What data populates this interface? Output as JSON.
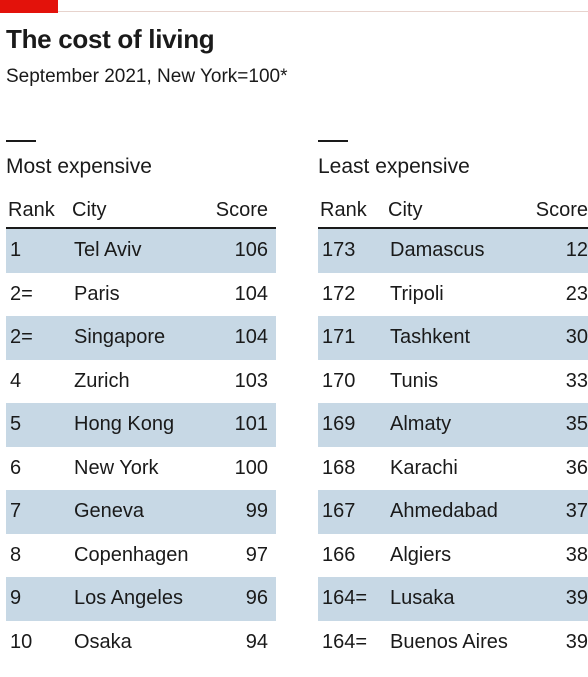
{
  "brand": {
    "accent_color": "#e3120b",
    "row_shade_color": "#c7d8e5"
  },
  "title": "The cost of living",
  "subtitle": "September 2021, New York=100*",
  "chart_data": [
    {
      "type": "table",
      "heading": "Most expensive",
      "columns": [
        "Rank",
        "City",
        "Score"
      ],
      "rows": [
        {
          "rank": "1",
          "city": "Tel Aviv",
          "score": 106
        },
        {
          "rank": "2=",
          "city": "Paris",
          "score": 104
        },
        {
          "rank": "2=",
          "city": "Singapore",
          "score": 104
        },
        {
          "rank": "4",
          "city": "Zurich",
          "score": 103
        },
        {
          "rank": "5",
          "city": "Hong Kong",
          "score": 101
        },
        {
          "rank": "6",
          "city": "New York",
          "score": 100
        },
        {
          "rank": "7",
          "city": "Geneva",
          "score": 99
        },
        {
          "rank": "8",
          "city": "Copenhagen",
          "score": 97
        },
        {
          "rank": "9",
          "city": "Los Angeles",
          "score": 96
        },
        {
          "rank": "10",
          "city": "Osaka",
          "score": 94
        }
      ]
    },
    {
      "type": "table",
      "heading": "Least expensive",
      "columns": [
        "Rank",
        "City",
        "Score"
      ],
      "rows": [
        {
          "rank": "173",
          "city": "Damascus",
          "score": 12
        },
        {
          "rank": "172",
          "city": "Tripoli",
          "score": 23
        },
        {
          "rank": "171",
          "city": "Tashkent",
          "score": 30
        },
        {
          "rank": "170",
          "city": "Tunis",
          "score": 33
        },
        {
          "rank": "169",
          "city": "Almaty",
          "score": 35
        },
        {
          "rank": "168",
          "city": "Karachi",
          "score": 36
        },
        {
          "rank": "167",
          "city": "Ahmedabad",
          "score": 37
        },
        {
          "rank": "166",
          "city": "Algiers",
          "score": 38
        },
        {
          "rank": "164=",
          "city": "Lusaka",
          "score": 39
        },
        {
          "rank": "164=",
          "city": "Buenos Aires",
          "score": 39
        }
      ]
    }
  ]
}
